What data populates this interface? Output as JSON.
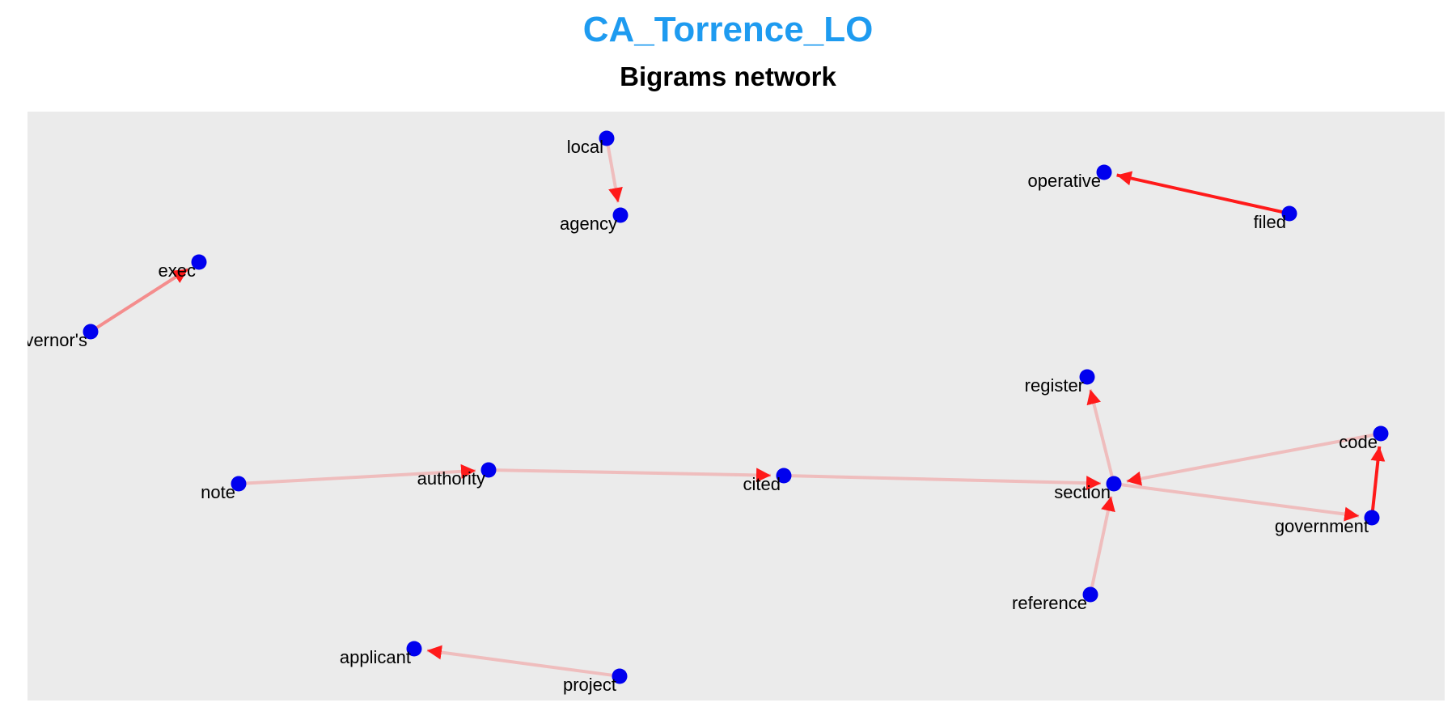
{
  "title": "CA_Torrence_LO",
  "subtitle": "Bigrams network",
  "colors": {
    "title": "#1E9BF0",
    "node": "#0000EE",
    "edge": "#FF1A1A",
    "panel_bg": "#EBEBEB"
  },
  "nodes": [
    {
      "id": "local",
      "label": "local"
    },
    {
      "id": "agency",
      "label": "agency"
    },
    {
      "id": "operative",
      "label": "operative"
    },
    {
      "id": "filed",
      "label": "filed"
    },
    {
      "id": "exec",
      "label": "exec"
    },
    {
      "id": "governors",
      "label": "governor's"
    },
    {
      "id": "register",
      "label": "register"
    },
    {
      "id": "code",
      "label": "code"
    },
    {
      "id": "note",
      "label": "note"
    },
    {
      "id": "authority",
      "label": "authority"
    },
    {
      "id": "cited",
      "label": "cited"
    },
    {
      "id": "section",
      "label": "section"
    },
    {
      "id": "government",
      "label": "government"
    },
    {
      "id": "reference",
      "label": "reference"
    },
    {
      "id": "applicant",
      "label": "applicant"
    },
    {
      "id": "project",
      "label": "project"
    }
  ],
  "edges": [
    {
      "from": "local",
      "to": "agency",
      "weight": 1
    },
    {
      "from": "filed",
      "to": "operative",
      "weight": 3
    },
    {
      "from": "governors",
      "to": "exec",
      "weight": 2
    },
    {
      "from": "note",
      "to": "authority",
      "weight": 1
    },
    {
      "from": "authority",
      "to": "cited",
      "weight": 1
    },
    {
      "from": "cited",
      "to": "section",
      "weight": 1
    },
    {
      "from": "section",
      "to": "register",
      "weight": 1
    },
    {
      "from": "code",
      "to": "section",
      "weight": 1
    },
    {
      "from": "section",
      "to": "government",
      "weight": 1
    },
    {
      "from": "government",
      "to": "code",
      "weight": 3
    },
    {
      "from": "reference",
      "to": "section",
      "weight": 1
    },
    {
      "from": "project",
      "to": "applicant",
      "weight": 1
    }
  ]
}
